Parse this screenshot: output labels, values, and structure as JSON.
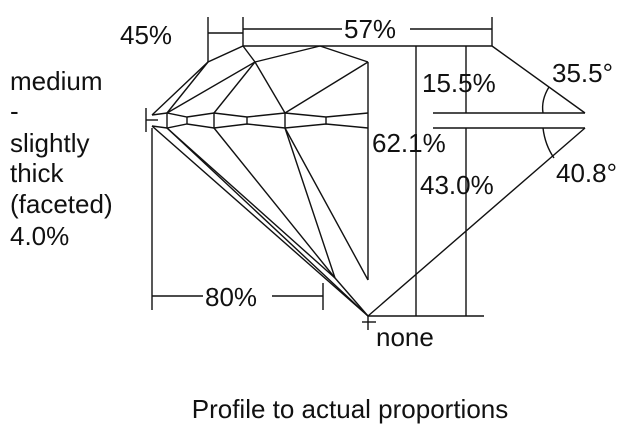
{
  "girdle_label": [
    "medium",
    "-",
    "slightly",
    "thick",
    "(faceted)",
    "4.0%"
  ],
  "crown_label": "45%",
  "table_label": "57%",
  "crown_height": "15.5%",
  "crown_angle": "35.5°",
  "total_depth": "62.1%",
  "pavilion_depth": "43.0%",
  "pavilion_angle": "40.8°",
  "lower_half": "80%",
  "culet": "none",
  "caption": "Profile to actual proportions"
}
